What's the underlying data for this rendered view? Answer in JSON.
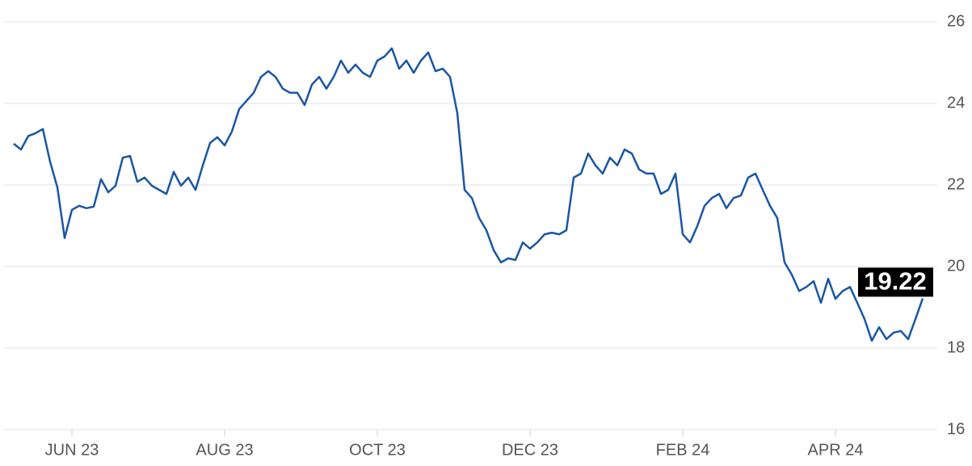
{
  "chart_data": {
    "type": "line",
    "categories": [
      null,
      null,
      null,
      null,
      null,
      null,
      null,
      null,
      "JUN 23",
      null,
      null,
      null,
      null,
      null,
      null,
      null,
      null,
      null,
      null,
      null,
      null,
      null,
      null,
      null,
      null,
      null,
      null,
      null,
      null,
      "AUG 23",
      null,
      null,
      null,
      null,
      null,
      null,
      null,
      null,
      null,
      null,
      null,
      null,
      null,
      null,
      null,
      null,
      null,
      null,
      null,
      null,
      "OCT 23",
      null,
      null,
      null,
      null,
      null,
      null,
      null,
      null,
      null,
      null,
      null,
      null,
      null,
      null,
      null,
      null,
      null,
      null,
      null,
      null,
      "DEC 23",
      null,
      null,
      null,
      null,
      null,
      null,
      null,
      null,
      null,
      null,
      null,
      null,
      null,
      null,
      null,
      null,
      null,
      null,
      null,
      null,
      "FEB 24",
      null,
      null,
      null,
      null,
      null,
      null,
      null,
      null,
      null,
      null,
      null,
      null,
      null,
      null,
      null,
      null,
      null,
      null,
      null,
      null,
      "APR 24",
      null,
      null,
      null,
      null,
      null,
      null,
      null,
      null,
      null,
      null,
      null,
      null
    ],
    "values": [
      23.01,
      22.87,
      23.2,
      23.27,
      23.37,
      22.57,
      21.94,
      20.7,
      21.39,
      21.49,
      21.43,
      21.47,
      22.14,
      21.82,
      21.98,
      22.67,
      22.71,
      22.08,
      22.18,
      21.98,
      21.88,
      21.78,
      22.32,
      21.98,
      22.18,
      21.88,
      22.48,
      23.03,
      23.17,
      22.97,
      23.31,
      23.86,
      24.06,
      24.26,
      24.65,
      24.79,
      24.65,
      24.36,
      24.26,
      24.26,
      23.96,
      24.46,
      24.65,
      24.36,
      24.65,
      25.05,
      24.75,
      24.95,
      24.75,
      24.65,
      25.05,
      25.15,
      25.35,
      24.85,
      25.05,
      24.75,
      25.05,
      25.25,
      24.79,
      24.85,
      24.65,
      23.76,
      21.88,
      21.68,
      21.19,
      20.89,
      20.4,
      20.1,
      20.2,
      20.16,
      20.59,
      20.44,
      20.59,
      20.79,
      20.83,
      20.79,
      20.89,
      22.18,
      22.28,
      22.77,
      22.48,
      22.28,
      22.67,
      22.48,
      22.87,
      22.77,
      22.38,
      22.28,
      22.28,
      21.78,
      21.88,
      22.28,
      20.79,
      20.59,
      20.99,
      21.49,
      21.68,
      21.78,
      21.43,
      21.68,
      21.74,
      22.18,
      22.28,
      21.88,
      21.49,
      21.19,
      20.1,
      19.8,
      19.4,
      19.5,
      19.64,
      19.11,
      19.7,
      19.21,
      19.4,
      19.5,
      19.11,
      18.71,
      18.18,
      18.51,
      18.22,
      18.38,
      18.42,
      18.22,
      18.71,
      19.22
    ],
    "color": "#1a56a4",
    "ylim": [
      16,
      26
    ],
    "yticks": [
      16,
      18,
      20,
      22,
      24,
      26
    ],
    "grid": true
  }
}
